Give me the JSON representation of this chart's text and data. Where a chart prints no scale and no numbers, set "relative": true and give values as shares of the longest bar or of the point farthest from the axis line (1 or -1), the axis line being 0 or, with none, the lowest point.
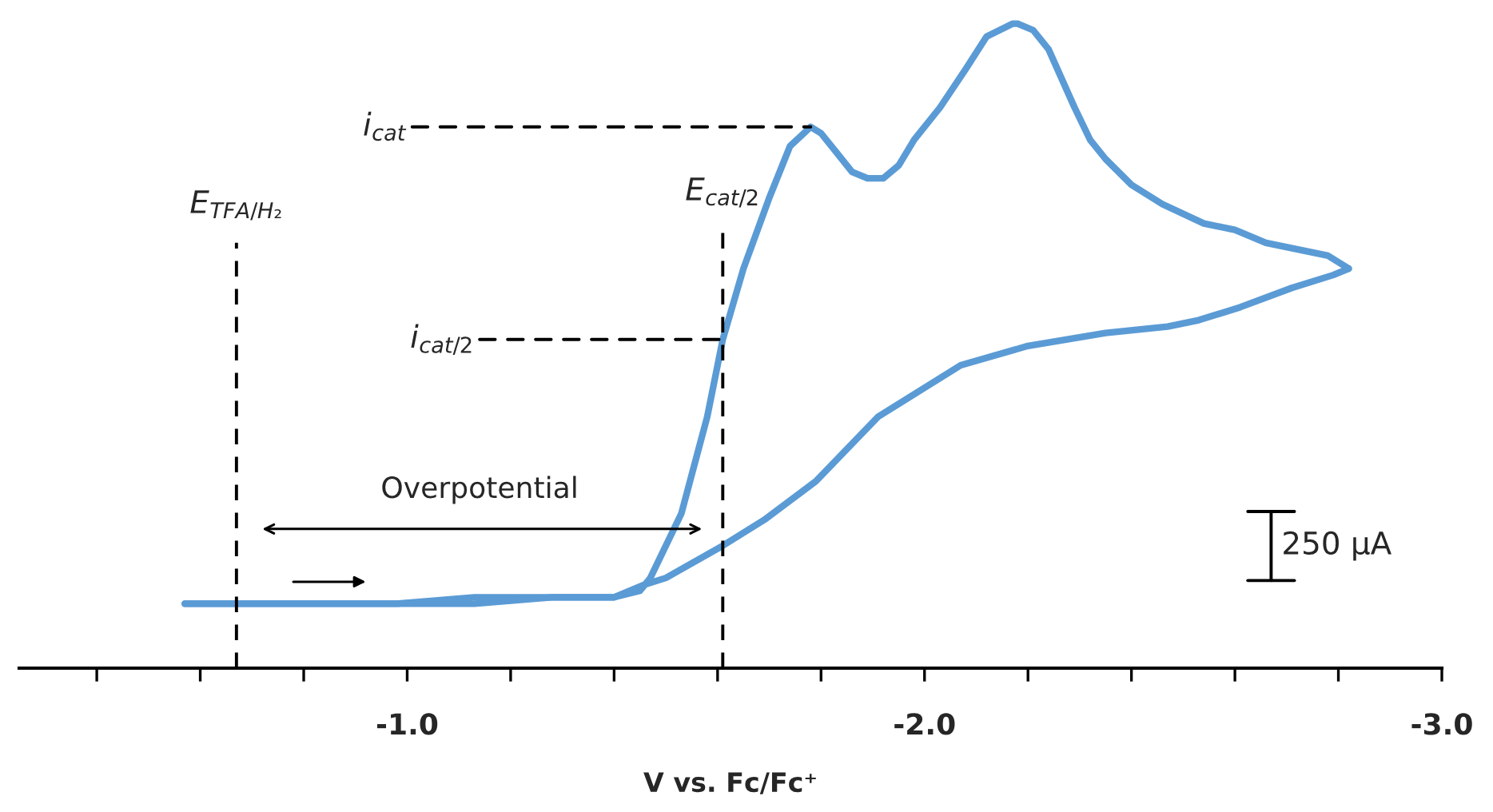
{
  "chart_data": {
    "type": "line",
    "relative": true,
    "xlabel": "V vs. Fc/Fc⁺",
    "xlim": [
      -0.25,
      -3.0
    ],
    "xticks": [
      {
        "value": -0.4,
        "label": null
      },
      {
        "value": -0.6,
        "label": null
      },
      {
        "value": -0.8,
        "label": null
      },
      {
        "value": -1.0,
        "label": "-1.0"
      },
      {
        "value": -1.2,
        "label": null
      },
      {
        "value": -1.4,
        "label": null
      },
      {
        "value": -1.6,
        "label": null
      },
      {
        "value": -1.8,
        "label": null
      },
      {
        "value": -2.0,
        "label": "-2.0"
      },
      {
        "value": -2.2,
        "label": null
      },
      {
        "value": -2.4,
        "label": null
      },
      {
        "value": -2.6,
        "label": null
      },
      {
        "value": -2.8,
        "label": null
      },
      {
        "value": -3.0,
        "label": "-3.0"
      }
    ],
    "tick_labels": "x",
    "grid": false,
    "legend": false,
    "marker": "none",
    "line_style": "solid",
    "series": [
      {
        "color": "#5b9bd5",
        "x": [
          -0.57,
          -0.67,
          -0.82,
          -0.98,
          -1.13,
          -1.28,
          -1.4,
          -1.45,
          -1.47,
          -1.53,
          -1.56,
          -1.58,
          -1.61,
          -1.65,
          -1.7,
          -1.74,
          -1.78,
          -1.8,
          -1.83,
          -1.86,
          -1.89,
          -1.92,
          -1.95,
          -1.98,
          -2.03,
          -2.08,
          -2.12,
          -2.17,
          -2.18,
          -2.21,
          -2.24,
          -2.29,
          -2.32,
          -2.35,
          -2.4,
          -2.46,
          -2.54,
          -2.6,
          -2.66,
          -2.72,
          -2.78,
          -2.82
        ],
        "values": [
          0.1,
          0.1,
          0.1,
          0.1,
          0.11,
          0.11,
          0.11,
          0.12,
          0.14,
          0.24,
          0.33,
          0.39,
          0.51,
          0.62,
          0.73,
          0.81,
          0.84,
          0.83,
          0.8,
          0.77,
          0.76,
          0.76,
          0.78,
          0.82,
          0.87,
          0.93,
          0.98,
          1.0,
          1.0,
          0.99,
          0.96,
          0.87,
          0.82,
          0.79,
          0.75,
          0.72,
          0.69,
          0.68,
          0.66,
          0.65,
          0.64,
          0.62
        ]
      },
      {
        "color": "#5b9bd5",
        "x": [
          -2.82,
          -2.79,
          -2.71,
          -2.61,
          -2.53,
          -2.47,
          -2.35,
          -2.2,
          -2.07,
          -1.99,
          -1.91,
          -1.79,
          -1.69,
          -1.61,
          -1.5,
          -1.46,
          -1.4,
          -1.28,
          -1.13,
          -0.98,
          -0.82,
          -0.67,
          -0.57
        ],
        "values": [
          0.62,
          0.61,
          0.59,
          0.56,
          0.54,
          0.53,
          0.52,
          0.5,
          0.47,
          0.43,
          0.39,
          0.29,
          0.23,
          0.19,
          0.14,
          0.13,
          0.11,
          0.11,
          0.1,
          0.1,
          0.1,
          0.1,
          0.1
        ]
      }
    ],
    "ref_lines": [
      {
        "axis": "x",
        "value": -0.67,
        "label": "E$_{TFA/H₂}$",
        "color": "#000000",
        "line_style": "dashed"
      },
      {
        "axis": "x",
        "value": -1.61,
        "label": "E$_{cat/2}$",
        "color": "#000000",
        "line_style": "dashed"
      }
    ],
    "annotations": [
      {
        "text": "i$_{cat}$",
        "x": -1.78,
        "y": 0.84
      },
      {
        "text": "i$_{cat/2}$",
        "x": -1.61,
        "y": 0.51
      },
      "Overpotential",
      "250 µA"
    ]
  }
}
